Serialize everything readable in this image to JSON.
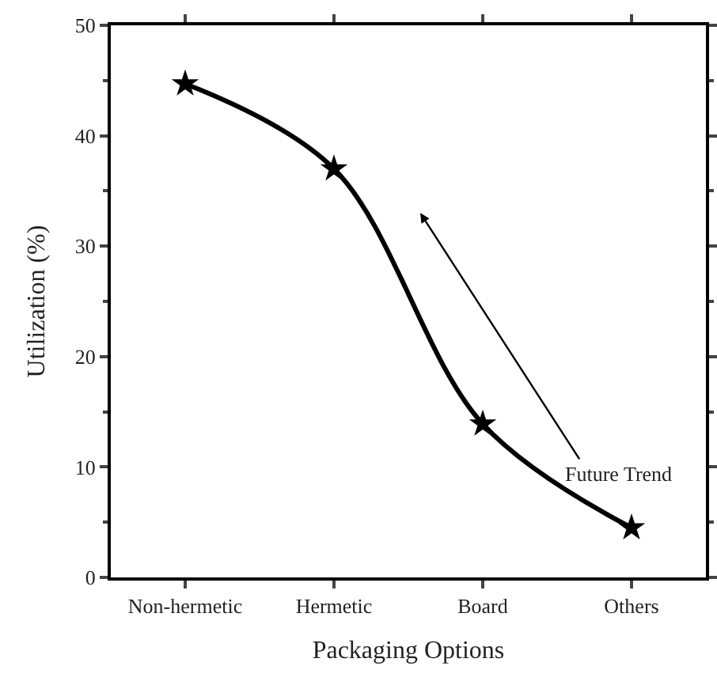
{
  "chart_data": {
    "type": "line",
    "xlabel": "Packaging Options",
    "ylabel": "Utilization (%)",
    "categories": [
      "Non-hermetic",
      "Hermetic",
      "Board",
      "Others"
    ],
    "series": [
      {
        "color": "#000000",
        "values": [
          44.7,
          37.0,
          13.9,
          4.5
        ]
      }
    ],
    "ylim": [
      0,
      50
    ],
    "yticks": [
      0,
      10,
      20,
      30,
      40,
      50
    ],
    "marker": "star",
    "line_style": "solid",
    "annotations": [
      "Future Trend"
    ]
  }
}
